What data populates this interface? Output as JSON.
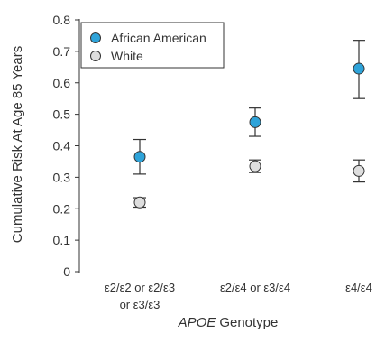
{
  "chart_data": {
    "type": "scatter",
    "title": "",
    "ylabel": "Cumulative Risk At Age 85 Years",
    "xlabel": "Genotype",
    "xlabel_prefix": "APOE",
    "ylim": [
      0,
      0.8
    ],
    "yticks": [
      0,
      0.1,
      0.2,
      0.3,
      0.4,
      0.5,
      0.6,
      0.7,
      0.8
    ],
    "ytick_labels": [
      "0",
      "0.1",
      "0.2",
      "0.3",
      "0.4",
      "0.5",
      "0.6",
      "0.7",
      "0.8"
    ],
    "categories": [
      [
        "ε2/ε2 or ε2/ε3",
        "or ε3/ε3"
      ],
      [
        "ε2/ε4 or ε3/ε4"
      ],
      [
        "ε4/ε4"
      ]
    ],
    "grid": false,
    "legend_position": "top-left",
    "series": [
      {
        "name": "African American",
        "color": "#2ea3d9",
        "values": [
          0.365,
          0.475,
          0.645
        ],
        "ci_low": [
          0.31,
          0.43,
          0.55
        ],
        "ci_high": [
          0.42,
          0.52,
          0.735
        ]
      },
      {
        "name": "White",
        "color": "#dedede",
        "values": [
          0.22,
          0.335,
          0.32
        ],
        "ci_low": [
          0.205,
          0.315,
          0.285
        ],
        "ci_high": [
          0.235,
          0.355,
          0.355
        ]
      }
    ]
  }
}
